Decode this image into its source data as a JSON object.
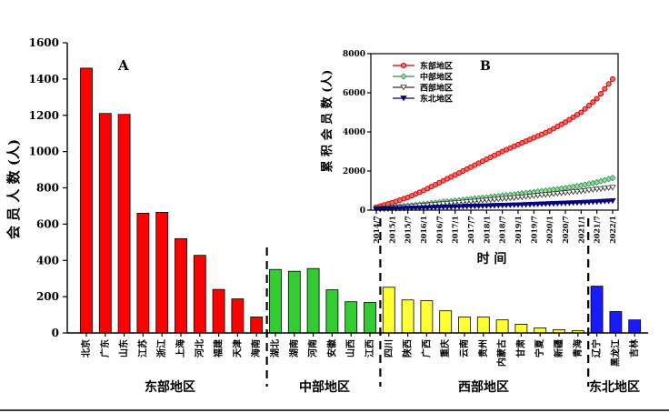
{
  "chart_data": [
    {
      "type": "bar",
      "panel_label": "A",
      "ylabel": "会 员 人 数 (人)",
      "ylim": [
        0,
        1600
      ],
      "yticks": [
        0,
        200,
        400,
        600,
        800,
        1000,
        1200,
        1400,
        1600
      ],
      "grid": false,
      "groups": [
        {
          "name": "东部地区",
          "color": "#ff0000",
          "categories": [
            "北京",
            "广东",
            "山东",
            "江苏",
            "浙江",
            "上海",
            "河北",
            "福建",
            "天津",
            "海南"
          ],
          "values": [
            1460,
            1210,
            1205,
            660,
            665,
            520,
            428,
            240,
            188,
            88
          ]
        },
        {
          "name": "中部地区",
          "color": "#33cc33",
          "categories": [
            "湖北",
            "湖南",
            "河南",
            "安徽",
            "山西",
            "江西"
          ],
          "values": [
            350,
            340,
            355,
            238,
            172,
            168
          ]
        },
        {
          "name": "西部地区",
          "color": "#ffff33",
          "categories": [
            "四川",
            "陕西",
            "广西",
            "重庆",
            "云南",
            "贵州",
            "内蒙古",
            "甘肃",
            "宁夏",
            "新疆",
            "青海"
          ],
          "values": [
            252,
            182,
            178,
            122,
            88,
            88,
            72,
            48,
            28,
            18,
            12
          ]
        },
        {
          "name": "东北地区",
          "color": "#1a1aff",
          "categories": [
            "辽宁",
            "黑龙江",
            "吉林"
          ],
          "values": [
            258,
            118,
            72
          ]
        }
      ]
    },
    {
      "type": "line",
      "panel_label": "B",
      "xlabel": "时 间",
      "ylabel": "累 积 会 员 数 (人)",
      "ylim": [
        0,
        8000
      ],
      "yticks": [
        0,
        2000,
        4000,
        6000,
        8000
      ],
      "xticks": [
        "2014/7",
        "2015/1",
        "2015/7",
        "2016/1",
        "2016/7",
        "2017/1",
        "2017/7",
        "2018/1",
        "2018/7",
        "2019/1",
        "2019/7",
        "2020/1",
        "2020/7",
        "2021/1",
        "2021/7",
        "2022/1"
      ],
      "legend_position": "top-left",
      "series": [
        {
          "name": "东部地区",
          "color": "#cc0000",
          "values": [
            150,
            380,
            650,
            1000,
            1400,
            1800,
            2200,
            2600,
            3000,
            3350,
            3700,
            4050,
            4500,
            5000,
            5700,
            6700
          ]
        },
        {
          "name": "中部地区",
          "color": "#2e8b57",
          "values": [
            80,
            150,
            230,
            310,
            400,
            480,
            570,
            650,
            740,
            830,
            920,
            1020,
            1130,
            1260,
            1420,
            1650
          ]
        },
        {
          "name": "西部地区",
          "color": "#333333",
          "values": [
            60,
            110,
            170,
            230,
            300,
            360,
            430,
            500,
            570,
            640,
            720,
            800,
            880,
            960,
            1060,
            1150
          ]
        },
        {
          "name": "东北地区",
          "color": "#000080",
          "values": [
            40,
            60,
            90,
            110,
            140,
            160,
            190,
            210,
            240,
            260,
            290,
            320,
            350,
            380,
            420,
            470
          ]
        }
      ]
    }
  ]
}
